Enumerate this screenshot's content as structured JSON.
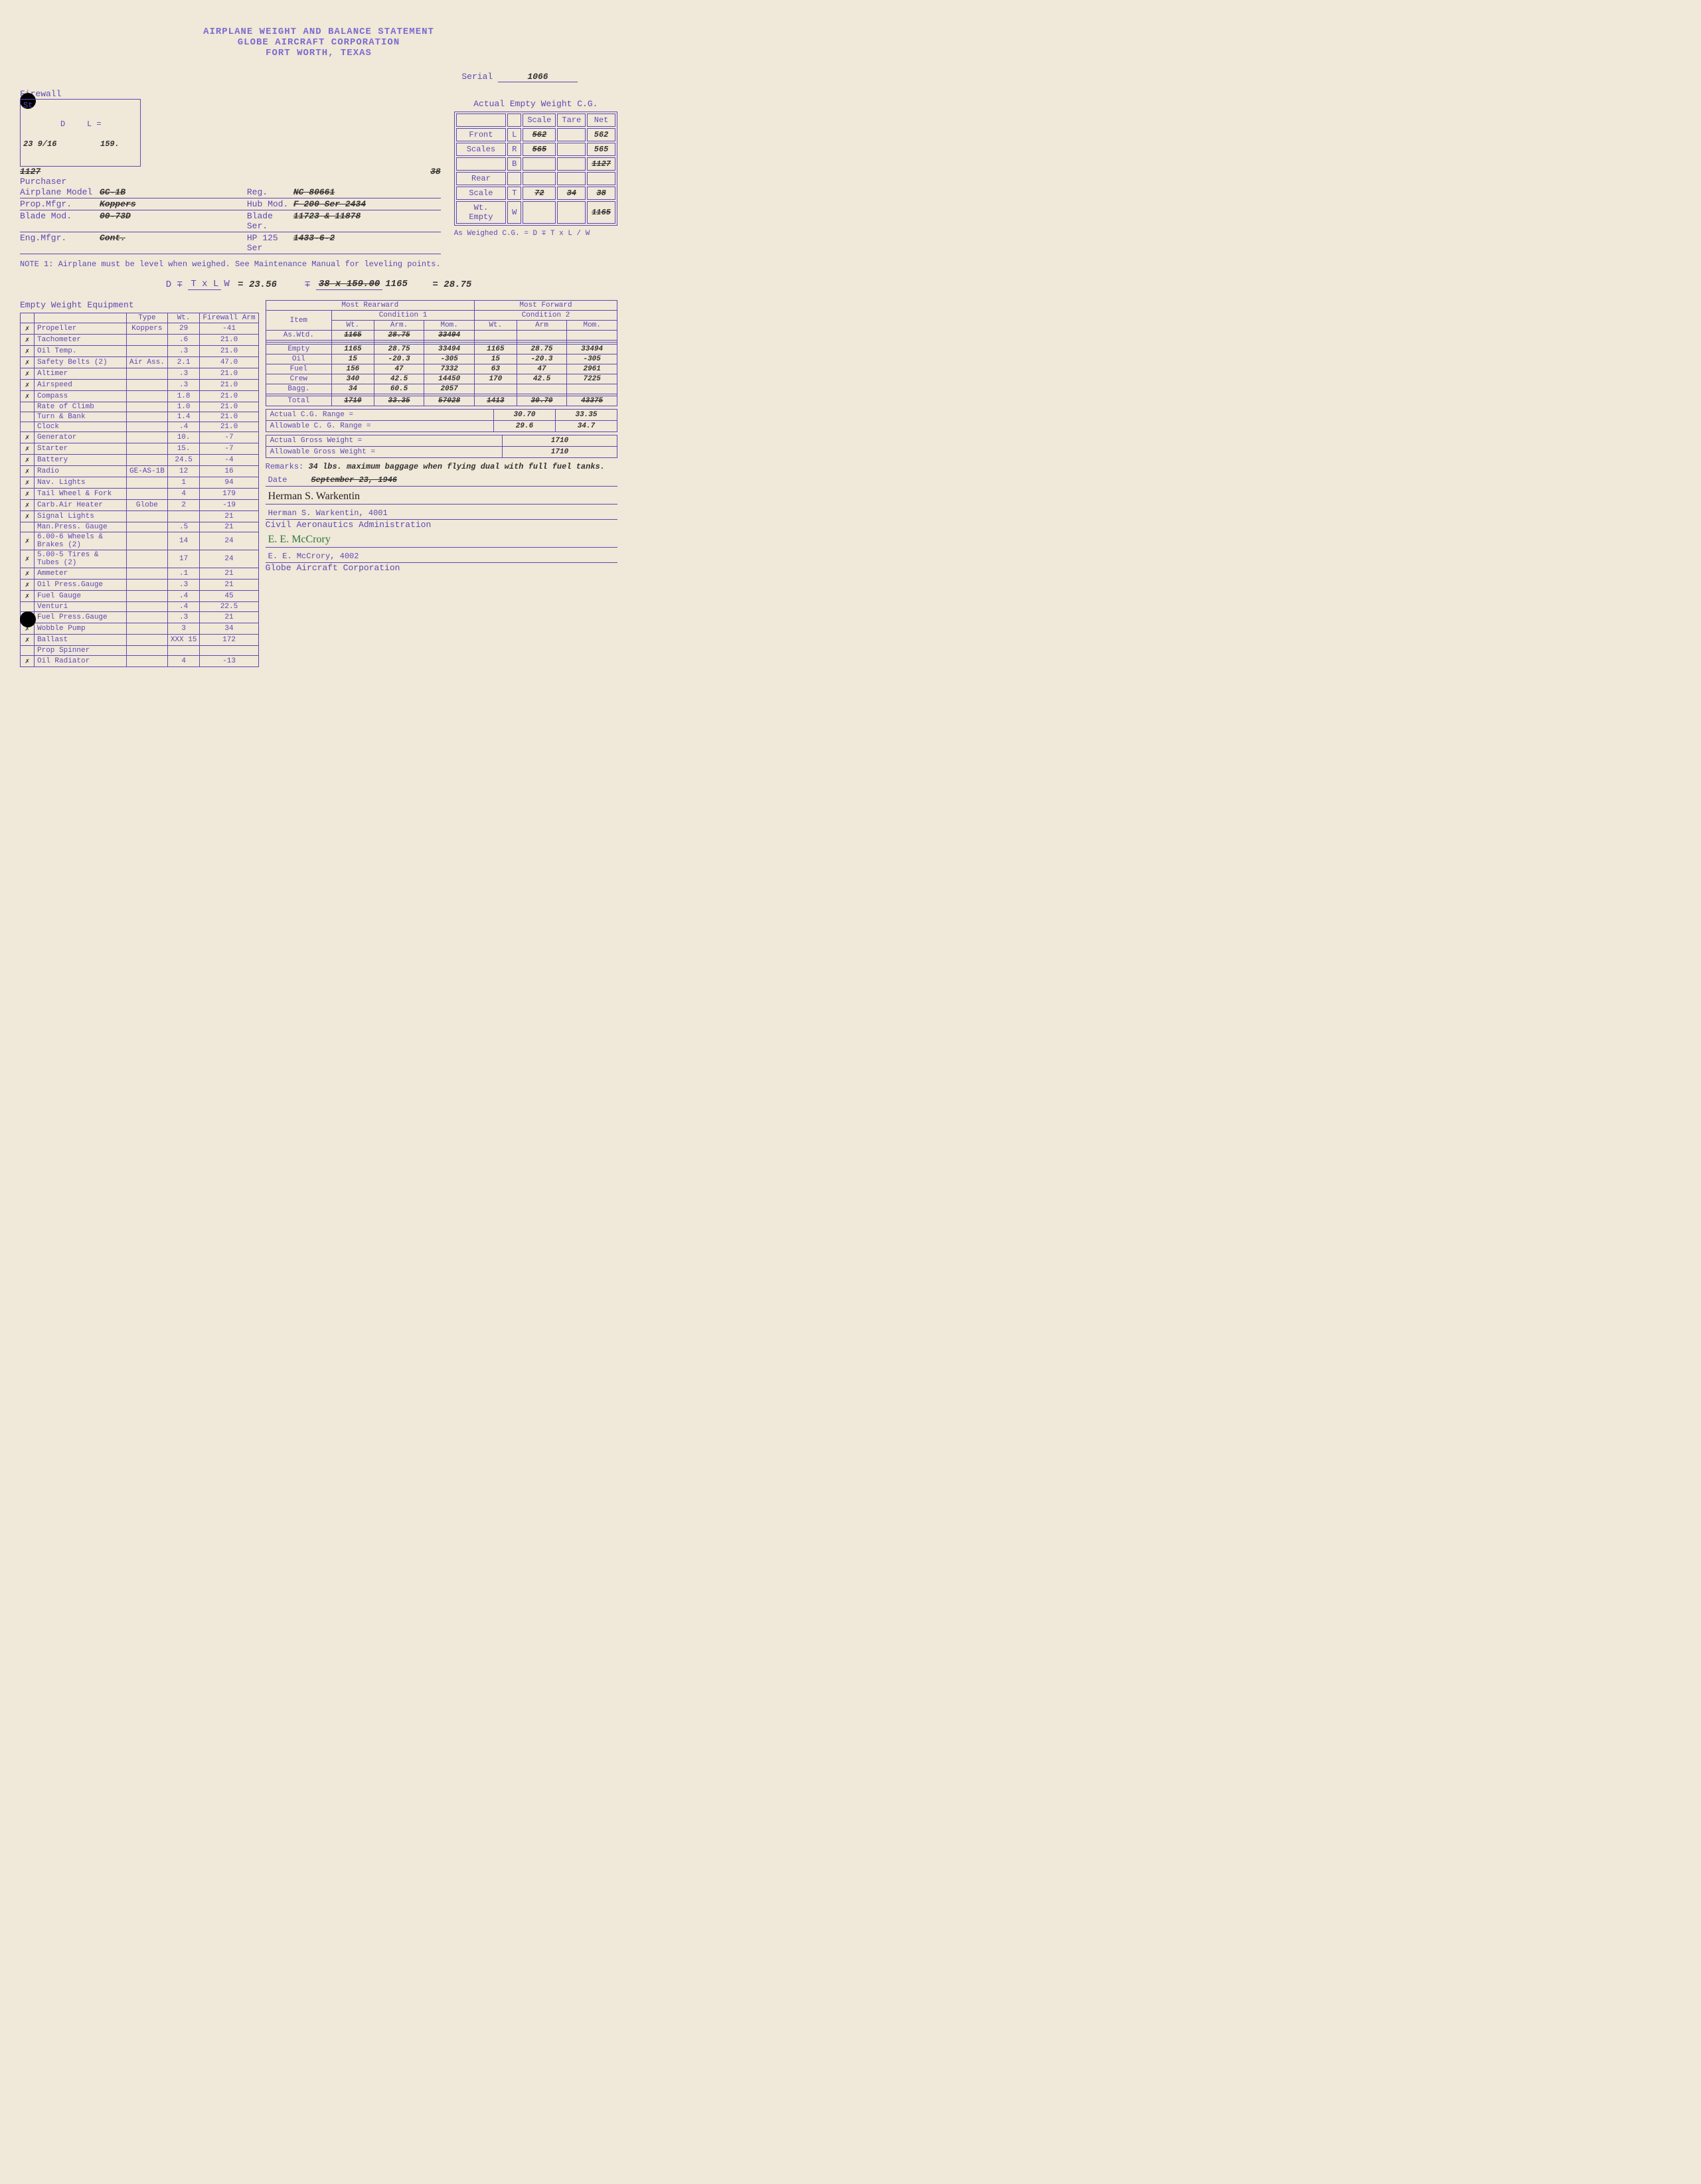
{
  "header": {
    "line1": "AIRPLANE WEIGHT AND BALANCE STATEMENT",
    "line2": "GLOBE AIRCRAFT CORPORATION",
    "line3": "FORT WORTH, TEXAS"
  },
  "serial": {
    "label": "Serial",
    "value": "1066"
  },
  "firewall_label": "Firewall",
  "datum": {
    "station": "St",
    "D_label": "D",
    "L_label": "L =",
    "val_23": "23 9/16",
    "val_159": "159.",
    "val_1127": "1127",
    "val_38": "38"
  },
  "purchaser_label": "Purchaser",
  "model_rows": [
    {
      "label": "Airplane Model",
      "mid": "GC-1B",
      "r_label": "Reg.",
      "r_val": "NC 80661"
    },
    {
      "label": "Prop.Mfgr.",
      "mid": "Koppers",
      "r_label": "Hub Mod.",
      "r_val": "F 200  Ser 2434"
    },
    {
      "label": "Blade Mod.",
      "mid": "00-73D",
      "r_label": "Blade Ser.",
      "r_val": "11723 & 11878"
    },
    {
      "label": "Eng.Mfgr.",
      "mid": "Cont.",
      "r_label": "HP  125  Ser",
      "r_val": "1433-6-2"
    }
  ],
  "note1": "NOTE 1:  Airplane must be level when weighed. See Maintenance Manual for leveling points.",
  "actual_cg": {
    "title": "Actual Empty Weight C.G.",
    "cols": [
      "",
      "",
      "Scale",
      "Tare",
      "Net"
    ],
    "rows": [
      {
        "l1": "Front",
        "l2": "L",
        "scale": "562",
        "tare": "",
        "net": "562"
      },
      {
        "l1": "Scales",
        "l2": "R",
        "scale": "565",
        "tare": "",
        "net": "565"
      },
      {
        "l1": "",
        "l2": "B",
        "scale": "",
        "tare": "",
        "net": "1127"
      },
      {
        "l1": "Rear",
        "l2": "",
        "scale": "",
        "tare": "",
        "net": ""
      },
      {
        "l1": "Scale",
        "l2": "T",
        "scale": "72",
        "tare": "34",
        "net": "38"
      },
      {
        "l1": "Wt. Empty",
        "l2": "W",
        "scale": "",
        "tare": "",
        "net": "1165"
      }
    ],
    "footer": "As Weighed C.G.        = D ∓ T x L / W"
  },
  "formula": {
    "lhs": "D ∓",
    "frac_num": "T x L",
    "frac_den": "W",
    "eq1": "= 23.56",
    "mid": "∓",
    "frac2_num": "38 x 159.00",
    "frac2_den": "1165",
    "result": "=   28.75"
  },
  "equip_title": "Empty Weight Equipment",
  "equip_cols": [
    "",
    "",
    "Type",
    "Wt.",
    "Firewall Arm"
  ],
  "equip_rows": [
    {
      "c": "✗",
      "name": "Propeller",
      "type": "Koppers",
      "wt": "29",
      "arm": "-41"
    },
    {
      "c": "✗",
      "name": "Tachometer",
      "type": "",
      "wt": ".6",
      "arm": "21.0"
    },
    {
      "c": "✗",
      "name": "Oil Temp.",
      "type": "",
      "wt": ".3",
      "arm": "21.0"
    },
    {
      "c": "✗",
      "name": "Safety Belts (2)",
      "type": "Air Ass.",
      "wt": "2.1",
      "arm": "47.0"
    },
    {
      "c": "✗",
      "name": "Altimer",
      "type": "",
      "wt": ".3",
      "arm": "21.0"
    },
    {
      "c": "✗",
      "name": "Airspeed",
      "type": "",
      "wt": ".3",
      "arm": "21.0"
    },
    {
      "c": "✗",
      "name": "Compass",
      "type": "",
      "wt": "1.8",
      "arm": "21.0"
    },
    {
      "c": "",
      "name": "Rate of Climb",
      "type": "",
      "wt": "1.0",
      "arm": "21.0"
    },
    {
      "c": "",
      "name": "Turn & Bank",
      "type": "",
      "wt": "1.4",
      "arm": "21.0"
    },
    {
      "c": "",
      "name": "Clock",
      "type": "",
      "wt": ".4",
      "arm": "21.0"
    },
    {
      "c": "✗",
      "name": "Generator",
      "type": "",
      "wt": "10.",
      "arm": "-7"
    },
    {
      "c": "✗",
      "name": "Starter",
      "type": "",
      "wt": "15.",
      "arm": "-7"
    },
    {
      "c": "✗",
      "name": "Battery",
      "type": "",
      "wt": "24.5",
      "arm": "-4"
    },
    {
      "c": "✗",
      "name": "Radio",
      "type": "GE-AS-1B",
      "wt": "12",
      "arm": "16"
    },
    {
      "c": "✗",
      "name": "Nav. Lights",
      "type": "",
      "wt": "1",
      "arm": "94"
    },
    {
      "c": "✗",
      "name": "Tail Wheel & Fork",
      "type": "",
      "wt": "4",
      "arm": "179"
    },
    {
      "c": "✗",
      "name": "Carb.Air Heater",
      "type": "Globe",
      "wt": "2",
      "arm": "-19"
    },
    {
      "c": "✗",
      "name": "Signal Lights",
      "type": "",
      "wt": "",
      "arm": "21"
    },
    {
      "c": "",
      "name": "Man.Press. Gauge",
      "type": "",
      "wt": ".5",
      "arm": "21"
    },
    {
      "c": "✗",
      "name": "6.00-6 Wheels & Brakes (2)",
      "type": "",
      "wt": "14",
      "arm": "24"
    },
    {
      "c": "✗",
      "name": "5.00-5 Tires & Tubes (2)",
      "type": "",
      "wt": "17",
      "arm": "24"
    },
    {
      "c": "✗",
      "name": "Ammeter",
      "type": "",
      "wt": ".1",
      "arm": "21"
    },
    {
      "c": "✗",
      "name": "Oil Press.Gauge",
      "type": "",
      "wt": ".3",
      "arm": "21"
    },
    {
      "c": "✗",
      "name": "Fuel Gauge",
      "type": "",
      "wt": ".4",
      "arm": "45"
    },
    {
      "c": "",
      "name": "Venturi",
      "type": "",
      "wt": ".4",
      "arm": "22.5"
    },
    {
      "c": "✗",
      "name": "Fuel Press.Gauge",
      "type": "",
      "wt": ".3",
      "arm": "21"
    },
    {
      "c": "✗",
      "name": "Wobble Pump",
      "type": "",
      "wt": "3",
      "arm": "34"
    },
    {
      "c": "✗",
      "name": "Ballast",
      "type": "",
      "wt": "XXX 15",
      "arm": "172"
    },
    {
      "c": "",
      "name": "Prop Spinner",
      "type": "",
      "wt": "",
      "arm": ""
    },
    {
      "c": "✗",
      "name": "Oil Radiator",
      "type": "",
      "wt": "4",
      "arm": "-13"
    }
  ],
  "cg_cond": {
    "rear_title": "Most Rearward",
    "fwd_title": "Most Forward",
    "item_label": "Item",
    "cond1": "Condition 1",
    "cond2": "Condition 2",
    "sub_cols": [
      "Wt.",
      "Arm.",
      "Mom.",
      "Wt.",
      "Arm",
      "Mom."
    ],
    "rows": [
      {
        "item": "As.Wtd.",
        "c1": [
          "1165",
          "28.75",
          "33494"
        ],
        "c2": [
          "",
          "",
          ""
        ]
      },
      {
        "item": "",
        "c1": [
          "",
          "",
          ""
        ],
        "c2": [
          "",
          "",
          ""
        ]
      },
      {
        "item": "",
        "c1": [
          "",
          "",
          ""
        ],
        "c2": [
          "",
          "",
          ""
        ]
      },
      {
        "item": "Empty",
        "c1": [
          "1165",
          "28.75",
          "33494"
        ],
        "c2": [
          "1165",
          "28.75",
          "33494"
        ]
      },
      {
        "item": "Oil",
        "c1": [
          "15",
          "-20.3",
          "-305"
        ],
        "c2": [
          "15",
          "-20.3",
          "-305"
        ]
      },
      {
        "item": "Fuel",
        "c1": [
          "156",
          "47",
          "7332"
        ],
        "c2": [
          "63",
          "47",
          "2961"
        ]
      },
      {
        "item": "Crew",
        "c1": [
          "340",
          "42.5",
          "14450"
        ],
        "c2": [
          "170",
          "42.5",
          "7225"
        ]
      },
      {
        "item": "Bagg.",
        "c1": [
          "34",
          "60.5",
          "2057"
        ],
        "c2": [
          "",
          "",
          ""
        ]
      },
      {
        "item": "",
        "c1": [
          "",
          "",
          ""
        ],
        "c2": [
          "",
          "",
          ""
        ]
      },
      {
        "item": "Total",
        "c1": [
          "1710",
          "33.35",
          "57028"
        ],
        "c2": [
          "1413",
          "30.70",
          "43375"
        ]
      }
    ]
  },
  "ranges": [
    {
      "label": "Actual C.G. Range =",
      "v1": "30.70",
      "v2": "33.35"
    },
    {
      "label": "Allowable C. G. Range =",
      "v1": "29.6",
      "v2": "34.7"
    }
  ],
  "weights": [
    {
      "label": "Actual Gross Weight =",
      "v": "1710"
    },
    {
      "label": "Allowable Gross Weight =",
      "v": "1710"
    }
  ],
  "remarks": {
    "label": "Remarks:",
    "text": "34 lbs. maximum baggage when flying dual with full fuel tanks."
  },
  "date": {
    "label": "Date",
    "value": "September 23, 1946"
  },
  "sig1": {
    "name": "Herman S. Warkentin, 4001",
    "org": "Civil Aeronautics Administration"
  },
  "sig2": {
    "name": "E. E. McCrory, 4002",
    "org": "Globe Aircraft Corporation"
  }
}
